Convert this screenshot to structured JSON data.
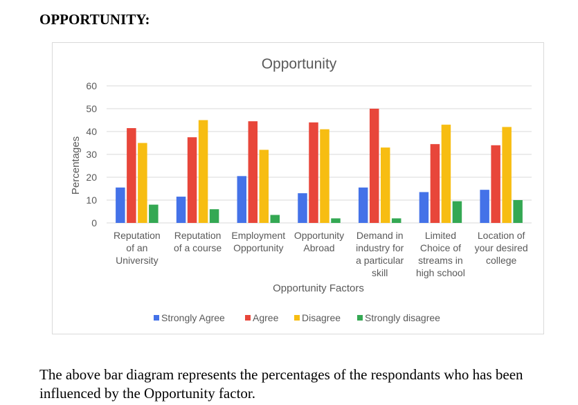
{
  "page": {
    "heading": "OPPORTUNITY:",
    "caption": "The above bar diagram represents the percentages of the respondants who has been influenced by the Opportunity factor."
  },
  "chart_data": {
    "type": "bar",
    "title": "Opportunity",
    "xlabel": "Opportunity Factors",
    "ylabel": "Percentages",
    "ylim": [
      0,
      60
    ],
    "yticks": [
      0,
      10,
      20,
      30,
      40,
      50,
      60
    ],
    "grid": true,
    "legend_position": "bottom",
    "categories": [
      [
        "Reputation",
        "of an",
        "University"
      ],
      [
        "Reputation",
        "of a course"
      ],
      [
        "Employment",
        "Opportunity"
      ],
      [
        "Opportunity",
        "Abroad"
      ],
      [
        "Demand in",
        "industry for",
        "a particular",
        "skill"
      ],
      [
        "Limited",
        "Choice of",
        "streams in",
        "high school"
      ],
      [
        "Location of",
        "your desired",
        "college"
      ]
    ],
    "series": [
      {
        "name": "Strongly Agree",
        "color": "#4472e8",
        "values": [
          15.5,
          11.5,
          20.5,
          13,
          15.5,
          13.5,
          14.5
        ]
      },
      {
        "name": "Agree",
        "color": "#e8463a",
        "values": [
          41.5,
          37.5,
          44.5,
          44,
          50,
          34.5,
          34
        ]
      },
      {
        "name": "Disagree",
        "color": "#f7bd12",
        "values": [
          35,
          45,
          32,
          41,
          33,
          43,
          42
        ]
      },
      {
        "name": "Strongly disagree",
        "color": "#34a853",
        "values": [
          8,
          6,
          3.5,
          2,
          2,
          9.5,
          10
        ]
      }
    ]
  }
}
